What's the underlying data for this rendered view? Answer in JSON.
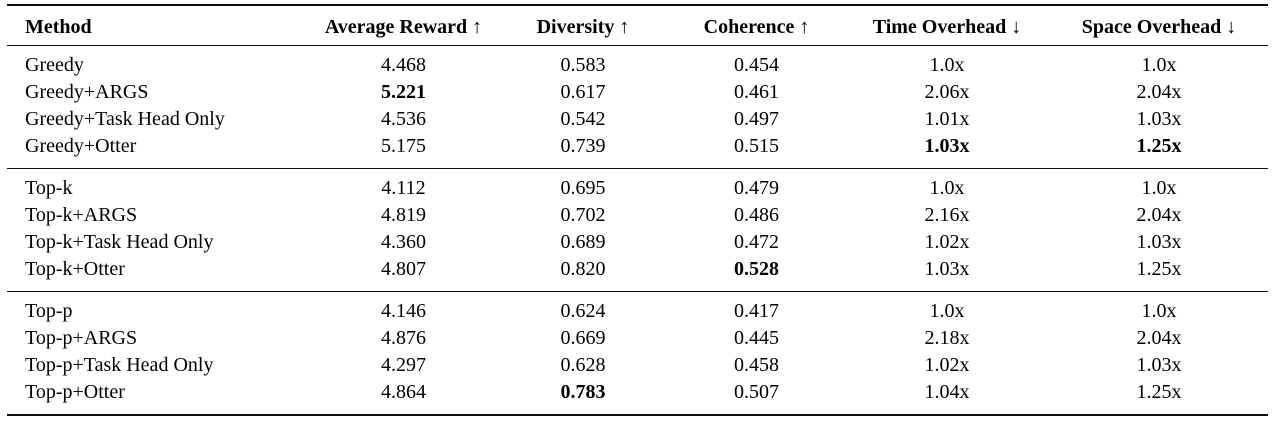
{
  "table": {
    "columns": [
      {
        "label": "Method"
      },
      {
        "label": "Average Reward ↑"
      },
      {
        "label": "Diversity ↑"
      },
      {
        "label": "Coherence ↑"
      },
      {
        "label": "Time Overhead ↓"
      },
      {
        "label": "Space Overhead ↓"
      }
    ],
    "groups": [
      {
        "rows": [
          {
            "method": "Greedy",
            "values": [
              "4.468",
              "0.583",
              "0.454",
              "1.0x",
              "1.0x"
            ],
            "bold": []
          },
          {
            "method": "Greedy+ARGS",
            "values": [
              "5.221",
              "0.617",
              "0.461",
              "2.06x",
              "2.04x"
            ],
            "bold": [
              0
            ]
          },
          {
            "method": "Greedy+Task Head Only",
            "values": [
              "4.536",
              "0.542",
              "0.497",
              "1.01x",
              "1.03x"
            ],
            "bold": []
          },
          {
            "method": "Greedy+Otter",
            "values": [
              "5.175",
              "0.739",
              "0.515",
              "1.03x",
              "1.25x"
            ],
            "bold": [
              3,
              4
            ]
          }
        ]
      },
      {
        "rows": [
          {
            "method": "Top-k",
            "values": [
              "4.112",
              "0.695",
              "0.479",
              "1.0x",
              "1.0x"
            ],
            "bold": []
          },
          {
            "method": "Top-k+ARGS",
            "values": [
              "4.819",
              "0.702",
              "0.486",
              "2.16x",
              "2.04x"
            ],
            "bold": []
          },
          {
            "method": "Top-k+Task Head Only",
            "values": [
              "4.360",
              "0.689",
              "0.472",
              "1.02x",
              "1.03x"
            ],
            "bold": []
          },
          {
            "method": "Top-k+Otter",
            "values": [
              "4.807",
              "0.820",
              "0.528",
              "1.03x",
              "1.25x"
            ],
            "bold": [
              2
            ]
          }
        ]
      },
      {
        "rows": [
          {
            "method": "Top-p",
            "values": [
              "4.146",
              "0.624",
              "0.417",
              "1.0x",
              "1.0x"
            ],
            "bold": []
          },
          {
            "method": "Top-p+ARGS",
            "values": [
              "4.876",
              "0.669",
              "0.445",
              "2.18x",
              "2.04x"
            ],
            "bold": []
          },
          {
            "method": "Top-p+Task Head Only",
            "values": [
              "4.297",
              "0.628",
              "0.458",
              "1.02x",
              "1.03x"
            ],
            "bold": []
          },
          {
            "method": "Top-p+Otter",
            "values": [
              "4.864",
              "0.783",
              "0.507",
              "1.04x",
              "1.25x"
            ],
            "bold": [
              1
            ]
          }
        ]
      }
    ],
    "colors": {
      "text": "#000000",
      "rule": "#101010",
      "background": "#ffffff"
    }
  }
}
